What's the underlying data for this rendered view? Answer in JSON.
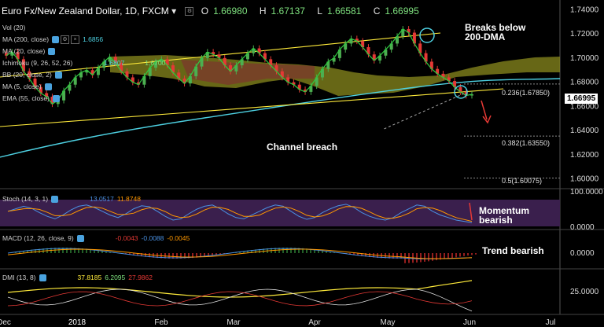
{
  "header": {
    "symbol": "Euro Fx/New Zealand Dollar, 1D, FXCM",
    "open_label": "O",
    "open": "1.66980",
    "high_label": "H",
    "high": "1.67137",
    "low_label": "L",
    "low": "1.66581",
    "close_label": "C",
    "close": "1.66995"
  },
  "indicators": {
    "vol": "Vol (20)",
    "ma200": "MA (200, close)",
    "ma200_val": "1.6856",
    "ma20": "MA (20, close)",
    "ichimoku": "Ichimoku (9, 26, 52, 26)",
    "bb": "BB (20, close, 2)",
    "ma5": "MA (5, close)",
    "ema55": "EMA (55, close)",
    "ichimoku_vals": [
      "1.6807",
      "1.6700"
    ]
  },
  "annotations": {
    "breaks_line1": "Breaks below",
    "breaks_line2": "200-DMA",
    "channel": "Channel breach",
    "momentum_line1": "Momentum",
    "momentum_line2": "bearish",
    "trend": "Trend bearish"
  },
  "fib": {
    "f236": "0.236(1.67850)",
    "f382": "0.382(1.63550)",
    "f5": "0.5(1.60075)"
  },
  "current_price": "1.66995",
  "stoch": {
    "label": "Stoch (14, 3, 1)",
    "k": "13.0517",
    "d": "11.8748",
    "ticks": [
      "100.0000",
      "0.0000"
    ]
  },
  "macd": {
    "label": "MACD (12, 26, close, 9)",
    "v1": "-0.0043",
    "v2": "-0.0088",
    "v3": "-0.0045",
    "ticks": [
      "0.0000"
    ]
  },
  "dmi": {
    "label": "DMI (13, 8)",
    "v1": "37.8185",
    "v2": "6.2095",
    "v3": "27.9862",
    "ticks": [
      "25.0000"
    ]
  },
  "colors": {
    "background": "#000000",
    "bull": "#4caf50",
    "bear": "#e53935",
    "ma200": "#4dd0e1",
    "channel": "#ffeb3b",
    "kumo": "#8a8a1e",
    "kumo_bear": "#7a3b2a",
    "stoch_bg": "#3a1f4d"
  },
  "chart_data": {
    "type": "candlestick",
    "title": "Euro Fx/New Zealand Dollar, 1D, FXCM",
    "x_ticks": [
      "Dec",
      "2018",
      "Feb",
      "Mar",
      "Apr",
      "May",
      "Jun",
      "Jul"
    ],
    "y_ticks": [
      "1.74000",
      "1.72000",
      "1.70000",
      "1.68000",
      "1.66000",
      "1.64000",
      "1.62000",
      "1.60000"
    ],
    "ylim": [
      1.592,
      1.748
    ],
    "close_series": [
      1.702,
      1.705,
      1.699,
      1.689,
      1.683,
      1.676,
      1.671,
      1.668,
      1.662,
      1.665,
      1.673,
      1.678,
      1.684,
      1.688,
      1.69,
      1.686,
      1.692,
      1.697,
      1.701,
      1.696,
      1.689,
      1.684,
      1.68,
      1.678,
      1.685,
      1.692,
      1.697,
      1.699,
      1.694,
      1.688,
      1.683,
      1.679,
      1.685,
      1.693,
      1.7,
      1.705,
      1.703,
      1.7,
      1.694,
      1.689,
      1.694,
      1.699,
      1.704,
      1.708,
      1.704,
      1.699,
      1.694,
      1.689,
      1.684,
      1.68,
      1.678,
      1.674,
      1.672,
      1.677,
      1.684,
      1.691,
      1.697,
      1.7,
      1.707,
      1.712,
      1.716,
      1.714,
      1.709,
      1.703,
      1.698,
      1.702,
      1.707,
      1.712,
      1.718,
      1.724,
      1.721,
      1.712,
      1.704,
      1.697,
      1.691,
      1.687,
      1.684,
      1.681,
      1.676,
      1.672,
      1.669,
      1.67
    ]
  }
}
